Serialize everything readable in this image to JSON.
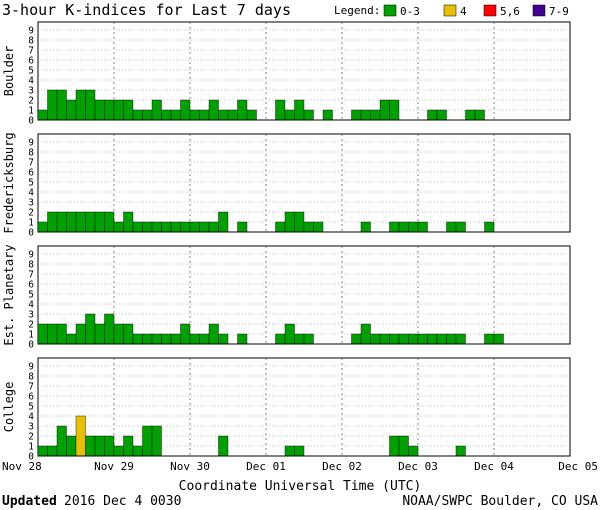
{
  "title": "3-hour K-indices for Last 7 days",
  "legend": {
    "label": "Legend:",
    "items": [
      {
        "text": "0-3",
        "color": "#00a000"
      },
      {
        "text": "4",
        "color": "#e8c000"
      },
      {
        "text": "5,6",
        "color": "#ff0000"
      },
      {
        "text": "7-9",
        "color": "#400090"
      }
    ]
  },
  "footer": {
    "updated_label": "Updated",
    "updated_value": "2016 Dec  4 0030",
    "source": "NOAA/SWPC Boulder, CO USA"
  },
  "chart_data": {
    "type": "bar",
    "xlabel": "Coordinate Universal Time (UTC)",
    "x_ticks": [
      "Nov 28",
      "Nov 29",
      "Nov 30",
      "Dec 01",
      "Dec 02",
      "Dec 03",
      "Dec 04",
      "Dec 05"
    ],
    "ylim": [
      0,
      9
    ],
    "y_ticks": [
      0,
      1,
      2,
      3,
      4,
      5,
      6,
      7,
      8,
      9
    ],
    "grid": true,
    "color_scale": [
      {
        "range": "0-3",
        "color": "#00a000"
      },
      {
        "range": "4",
        "color": "#e8c000"
      },
      {
        "range": "5,6",
        "color": "#ff0000"
      },
      {
        "range": "7-9",
        "color": "#400090"
      }
    ],
    "panels": [
      {
        "name": "Boulder",
        "values": [
          1,
          3,
          3,
          2,
          3,
          3,
          2,
          2,
          2,
          2,
          1,
          1,
          2,
          1,
          1,
          2,
          1,
          1,
          2,
          1,
          1,
          2,
          1,
          0,
          0,
          2,
          1,
          2,
          1,
          0,
          1,
          0,
          0,
          1,
          1,
          1,
          2,
          2,
          0,
          0,
          0,
          1,
          1,
          0,
          0,
          1,
          1,
          0,
          0,
          0,
          0,
          0,
          0,
          0,
          0,
          0
        ]
      },
      {
        "name": "Fredericksburg",
        "values": [
          1,
          2,
          2,
          2,
          2,
          2,
          2,
          2,
          1,
          2,
          1,
          1,
          1,
          1,
          1,
          1,
          1,
          1,
          1,
          2,
          0,
          1,
          0,
          0,
          0,
          1,
          2,
          2,
          1,
          1,
          0,
          0,
          0,
          0,
          1,
          0,
          0,
          1,
          1,
          1,
          1,
          0,
          0,
          1,
          1,
          0,
          0,
          1,
          0,
          0,
          0,
          0,
          0,
          0,
          0,
          0
        ]
      },
      {
        "name": "Est. Planetary",
        "values": [
          2,
          2,
          2,
          1,
          2,
          3,
          2,
          3,
          2,
          2,
          1,
          1,
          1,
          1,
          1,
          2,
          1,
          1,
          2,
          1,
          0,
          1,
          0,
          0,
          0,
          1,
          2,
          1,
          1,
          0,
          0,
          0,
          0,
          1,
          2,
          1,
          1,
          1,
          1,
          1,
          1,
          1,
          1,
          1,
          1,
          0,
          0,
          1,
          1,
          0,
          0,
          0,
          0,
          0,
          0,
          0
        ]
      },
      {
        "name": "College",
        "values": [
          1,
          1,
          3,
          2,
          4,
          2,
          2,
          2,
          1,
          2,
          1,
          3,
          3,
          0,
          0,
          0,
          0,
          0,
          0,
          2,
          0,
          0,
          0,
          0,
          0,
          0,
          1,
          1,
          0,
          0,
          0,
          0,
          0,
          0,
          0,
          0,
          0,
          2,
          2,
          1,
          0,
          0,
          0,
          0,
          1,
          0,
          0,
          0,
          0,
          0,
          0,
          0,
          0,
          0,
          0,
          0
        ]
      }
    ]
  }
}
